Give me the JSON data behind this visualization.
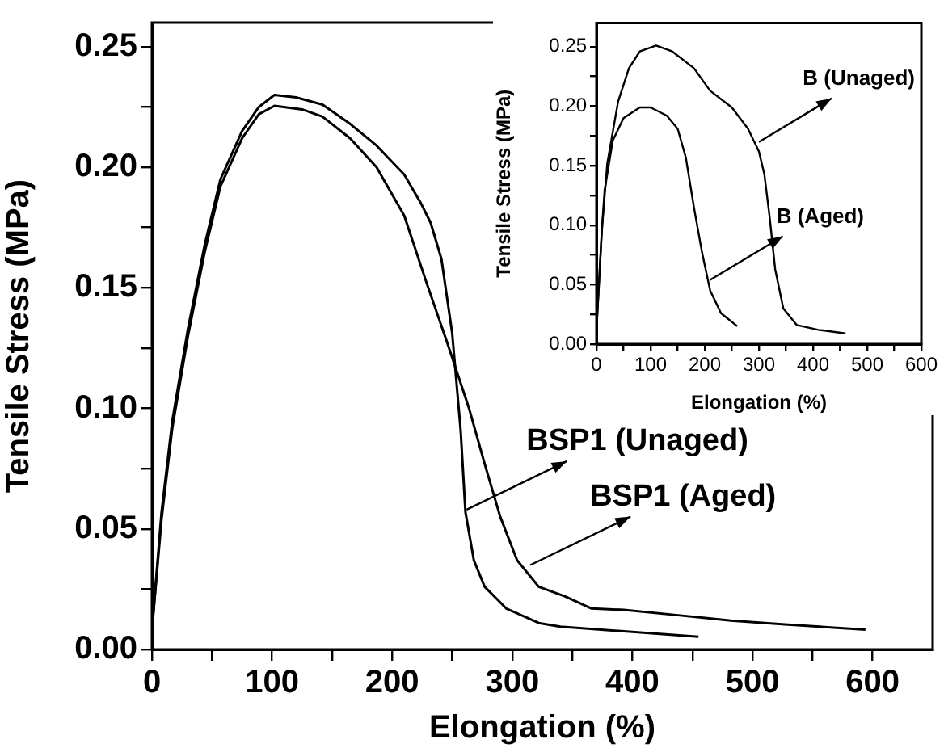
{
  "chart_data": [
    {
      "type": "line",
      "xlabel": "Elongation (%)",
      "ylabel": "Tensile Stress (MPa)",
      "xlim": [
        0,
        650
      ],
      "ylim": [
        0,
        0.26
      ],
      "xticks": [
        0,
        {
          "value": 50,
          "label": null
        },
        100,
        {
          "value": 150,
          "label": null
        },
        200,
        {
          "value": 250,
          "label": null
        },
        300,
        {
          "value": 350,
          "label": null
        },
        400,
        {
          "value": 450,
          "label": null
        },
        500,
        {
          "value": 550,
          "label": null
        },
        600
      ],
      "yticks": [
        {
          "value": 0,
          "label": "0.00"
        },
        {
          "value": 0.025,
          "label": null
        },
        {
          "value": 0.05,
          "label": "0.05"
        },
        {
          "value": 0.075,
          "label": null
        },
        {
          "value": 0.1,
          "label": "0.10"
        },
        {
          "value": 0.125,
          "label": null
        },
        {
          "value": 0.15,
          "label": "0.15"
        },
        {
          "value": 0.175,
          "label": null
        },
        {
          "value": 0.2,
          "label": "0.20"
        },
        {
          "value": 0.225,
          "label": null
        },
        {
          "value": 0.25,
          "label": "0.25"
        }
      ],
      "marker": "none",
      "line_style": "solid",
      "series": [
        {
          "color": "#000000",
          "x": [
            0,
            8,
            17,
            30,
            44,
            57,
            75,
            89,
            102,
            120,
            142,
            165,
            187,
            210,
            224,
            232,
            241,
            250,
            257,
            261,
            268,
            277,
            295,
            322,
            340,
            393,
            455
          ],
          "values": [
            0.008,
            0.057,
            0.095,
            0.133,
            0.168,
            0.195,
            0.215,
            0.225,
            0.23,
            0.229,
            0.226,
            0.218,
            0.209,
            0.197,
            0.185,
            0.177,
            0.162,
            0.131,
            0.091,
            0.057,
            0.037,
            0.026,
            0.017,
            0.011,
            0.0095,
            0.0075,
            0.0053
          ]
        },
        {
          "color": "#000000",
          "x": [
            0,
            8,
            17,
            30,
            44,
            57,
            75,
            89,
            102,
            125,
            142,
            165,
            187,
            210,
            228,
            246,
            264,
            277,
            290,
            304,
            322,
            344,
            366,
            393,
            438,
            482,
            527,
            594
          ],
          "values": [
            0.008,
            0.054,
            0.092,
            0.13,
            0.165,
            0.192,
            0.212,
            0.222,
            0.2255,
            0.224,
            0.221,
            0.212,
            0.2,
            0.18,
            0.153,
            0.127,
            0.1,
            0.077,
            0.055,
            0.037,
            0.026,
            0.022,
            0.017,
            0.0164,
            0.0142,
            0.012,
            0.0104,
            0.0082
          ]
        }
      ],
      "annotations": [
        {
          "text": "BSP1 (Unaged)",
          "x": 262,
          "y": 0.058
        },
        {
          "text": "BSP1 (Aged)",
          "x": 315,
          "y": 0.035
        }
      ]
    },
    {
      "type": "line",
      "xlabel": "Elongation (%)",
      "ylabel": "Tensile Stress (MPa)",
      "xlim": [
        0,
        600
      ],
      "ylim": [
        0,
        0.27
      ],
      "xticks": [
        0,
        {
          "value": 50,
          "label": null
        },
        100,
        {
          "value": 150,
          "label": null
        },
        200,
        {
          "value": 250,
          "label": null
        },
        300,
        {
          "value": 350,
          "label": null
        },
        400,
        {
          "value": 450,
          "label": null
        },
        500,
        {
          "value": 550,
          "label": null
        },
        600
      ],
      "yticks": [
        {
          "value": 0,
          "label": "0.00"
        },
        {
          "value": 0.025,
          "label": null
        },
        {
          "value": 0.05,
          "label": "0.05"
        },
        {
          "value": 0.075,
          "label": null
        },
        {
          "value": 0.1,
          "label": "0.10"
        },
        {
          "value": 0.125,
          "label": null
        },
        {
          "value": 0.15,
          "label": "0.15"
        },
        {
          "value": 0.175,
          "label": null
        },
        {
          "value": 0.2,
          "label": "0.20"
        },
        {
          "value": 0.225,
          "label": null
        },
        {
          "value": 0.25,
          "label": "0.25"
        }
      ],
      "marker": "none",
      "line_style": "solid",
      "series": [
        {
          "color": "#000000",
          "x": [
            0,
            10,
            20,
            40,
            60,
            80,
            110,
            140,
            180,
            210,
            250,
            280,
            300,
            310,
            320,
            330,
            345,
            370,
            410,
            460
          ],
          "values": [
            0.012,
            0.096,
            0.152,
            0.204,
            0.232,
            0.246,
            0.251,
            0.246,
            0.232,
            0.213,
            0.199,
            0.181,
            0.162,
            0.143,
            0.106,
            0.063,
            0.03,
            0.016,
            0.012,
            0.009
          ]
        },
        {
          "color": "#000000",
          "x": [
            0,
            10,
            15,
            30,
            50,
            80,
            100,
            130,
            150,
            165,
            180,
            195,
            210,
            230,
            260
          ],
          "values": [
            0.012,
            0.096,
            0.129,
            0.171,
            0.19,
            0.199,
            0.199,
            0.192,
            0.181,
            0.157,
            0.115,
            0.077,
            0.045,
            0.026,
            0.015
          ]
        }
      ],
      "annotations": [
        {
          "text": "B (Unaged)",
          "x": 300,
          "y": 0.17
        },
        {
          "text": "B (Aged)",
          "x": 210,
          "y": 0.054
        }
      ]
    }
  ]
}
